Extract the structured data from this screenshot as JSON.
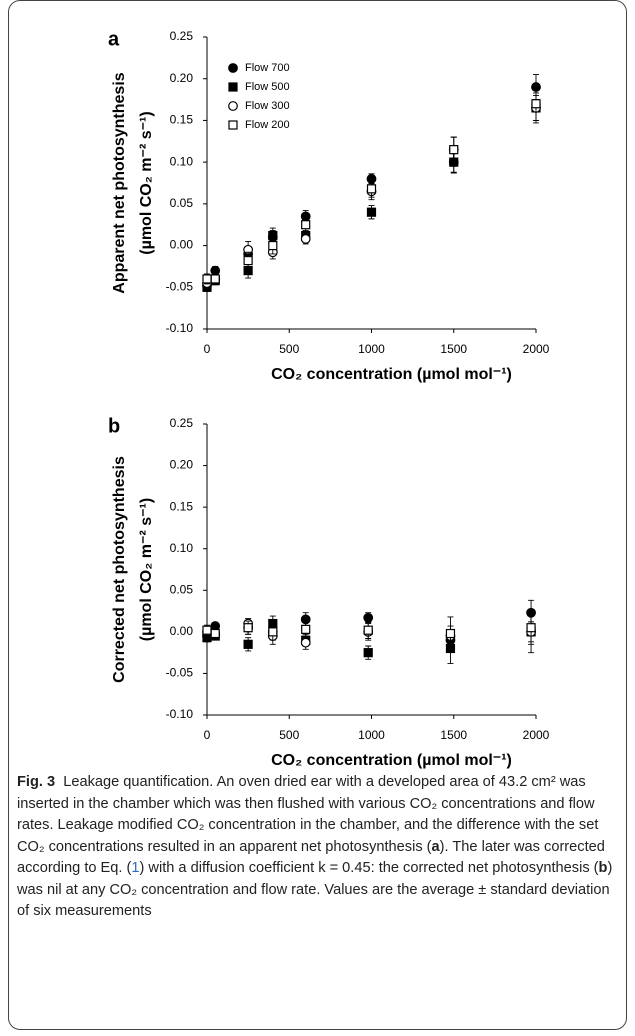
{
  "chart_data": [
    {
      "type": "scatter",
      "panel": "a",
      "ylabel": "Apparent net photosynthesis",
      "ylabel_units": "(µmol CO₂ m⁻² s⁻¹)",
      "xlabel": "CO₂ concentration (µmol mol⁻¹)",
      "xlim": [
        0,
        2000
      ],
      "xticks": [
        0,
        500,
        1000,
        1500,
        2000
      ],
      "ylim": [
        -0.1,
        0.25
      ],
      "yticks": [
        0.25,
        {
          "value": 0.2,
          "label": "0.20"
        },
        0.15,
        {
          "value": 0.1,
          "label": "0.10"
        },
        0.05,
        {
          "value": 0,
          "label": "0.00"
        },
        -0.05,
        {
          "value": -0.1,
          "label": "-0.10"
        }
      ],
      "legend": "upper left",
      "series": [
        {
          "name": "Flow 700",
          "color": "#000000",
          "marker": "filled circle",
          "x": [
            0,
            50,
            250,
            400,
            600,
            1000,
            1500,
            2000
          ],
          "values": [
            -0.048,
            -0.03,
            -0.01,
            0.01,
            0.035,
            0.08,
            0.1,
            0.19
          ],
          "errors": [
            0.006,
            0.005,
            0.008,
            0.008,
            0.007,
            0.006,
            0.012,
            0.015
          ]
        },
        {
          "name": "Flow 500",
          "color": "#000000",
          "marker": "filled square",
          "x": [
            0,
            50,
            250,
            400,
            600,
            1000,
            1500,
            2000
          ],
          "values": [
            -0.05,
            -0.042,
            -0.03,
            0.012,
            0.012,
            0.04,
            0.1,
            0.165
          ],
          "errors": [
            0.005,
            0.005,
            0.009,
            0.009,
            0.006,
            0.008,
            0.013,
            0.015
          ]
        },
        {
          "name": "Flow 300",
          "color": "#000000",
          "marker": "open circle",
          "x": [
            0,
            50,
            250,
            400,
            600,
            1000,
            1500,
            2000
          ],
          "values": [
            -0.045,
            -0.04,
            -0.005,
            -0.008,
            0.008,
            0.065,
            0.115,
            0.165
          ],
          "errors": [
            0.006,
            0.005,
            0.01,
            0.008,
            0.006,
            0.01,
            0.015,
            0.018
          ]
        },
        {
          "name": "Flow 200",
          "color": "#000000",
          "marker": "open square",
          "x": [
            0,
            50,
            250,
            400,
            600,
            1000,
            1500,
            2000
          ],
          "values": [
            -0.04,
            -0.04,
            -0.018,
            0.0,
            0.025,
            0.068,
            0.115,
            0.17
          ],
          "errors": [
            0.006,
            0.005,
            0.01,
            0.01,
            0.008,
            0.01,
            0.015,
            0.02
          ]
        }
      ]
    },
    {
      "type": "scatter",
      "panel": "b",
      "ylabel": "Corrected net photosynthesis",
      "ylabel_units": "(µmol CO₂ m⁻² s⁻¹)",
      "xlabel": "CO₂ concentration (µmol mol⁻¹)",
      "xlim": [
        0,
        2000
      ],
      "xticks": [
        0,
        500,
        1000,
        1500,
        2000
      ],
      "ylim": [
        -0.1,
        0.25
      ],
      "yticks": [
        0.25,
        {
          "value": 0.2,
          "label": "0.20"
        },
        0.15,
        {
          "value": 0.1,
          "label": "0.10"
        },
        0.05,
        {
          "value": 0,
          "label": "0.00"
        },
        -0.05,
        {
          "value": -0.1,
          "label": "-0.10"
        }
      ],
      "series": [
        {
          "name": "Flow 700",
          "color": "#000000",
          "marker": "filled circle",
          "x": [
            0,
            50,
            250,
            400,
            600,
            980,
            1480,
            1970
          ],
          "values": [
            -0.005,
            0.007,
            0.005,
            0.0,
            0.015,
            0.017,
            -0.01,
            0.023
          ],
          "errors": [
            0.005,
            0.004,
            0.008,
            0.008,
            0.008,
            0.006,
            0.012,
            0.015
          ]
        },
        {
          "name": "Flow 500",
          "color": "#000000",
          "marker": "filled square",
          "x": [
            0,
            50,
            250,
            400,
            600,
            980,
            1480,
            1970
          ],
          "values": [
            -0.007,
            -0.005,
            -0.015,
            0.01,
            -0.01,
            -0.025,
            -0.02,
            0.0
          ],
          "errors": [
            0.005,
            0.004,
            0.008,
            0.009,
            0.007,
            0.008,
            0.018,
            0.012
          ]
        },
        {
          "name": "Flow 300",
          "color": "#000000",
          "marker": "open circle",
          "x": [
            0,
            50,
            250,
            400,
            600,
            980,
            1480,
            1970
          ],
          "values": [
            0.0,
            -0.003,
            0.01,
            -0.005,
            -0.013,
            0.0,
            -0.005,
            0.0
          ],
          "errors": [
            0.006,
            0.004,
            0.006,
            0.01,
            0.008,
            0.01,
            0.012,
            0.025
          ]
        },
        {
          "name": "Flow 200",
          "color": "#000000",
          "marker": "open square",
          "x": [
            0,
            50,
            250,
            400,
            600,
            980,
            1480,
            1970
          ],
          "values": [
            0.002,
            -0.002,
            0.005,
            0.0,
            0.003,
            0.002,
            -0.002,
            0.005
          ],
          "errors": [
            0.006,
            0.004,
            0.008,
            0.01,
            0.01,
            0.01,
            0.02,
            0.02
          ]
        }
      ]
    }
  ],
  "caption": {
    "label": "Fig. 3",
    "parts": [
      "Leakage quantification. An oven dried ear with a developed area of 43.2 cm² was inserted in the chamber which was then flushed with various CO₂ concentrations and flow rates. Leakage modified CO₂ concentration in the chamber, and the difference with the set CO₂ concentrations resulted in an apparent net photosynthesis (",
      "a",
      "). The later was corrected according to Eq. (",
      "1",
      ") with a diffusion coefficient k = 0.45: the corrected net photosynthesis (",
      "b",
      ") was nil at any CO₂ concentration and flow rate. Values are the average ± standard deviation of six measurements"
    ]
  }
}
